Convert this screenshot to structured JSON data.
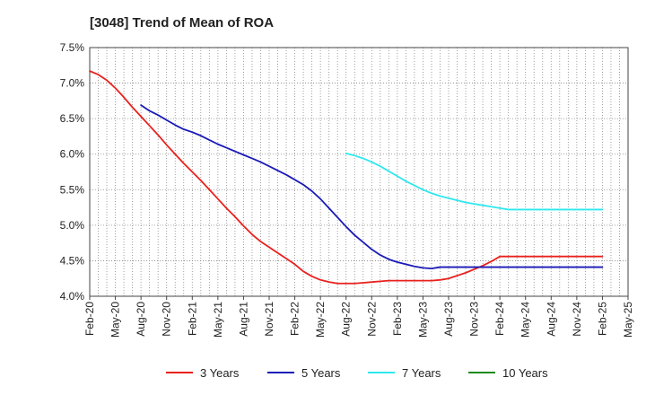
{
  "chart_data": {
    "type": "line",
    "title": "[3048]  Trend of Mean of ROA",
    "xlabel": "",
    "ylabel": "",
    "ylim": [
      4.0,
      7.5
    ],
    "yticks": [
      4.0,
      4.5,
      5.0,
      5.5,
      6.0,
      6.5,
      7.0,
      7.5
    ],
    "ytick_labels": [
      "4.0%",
      "4.5%",
      "5.0%",
      "5.5%",
      "6.0%",
      "6.5%",
      "7.0%",
      "7.5%"
    ],
    "x_index_range": [
      0,
      63
    ],
    "xtick_labels": [
      "Feb-20",
      "May-20",
      "Aug-20",
      "Nov-20",
      "Feb-21",
      "May-21",
      "Aug-21",
      "Nov-21",
      "Feb-22",
      "May-22",
      "Aug-22",
      "Nov-22",
      "Feb-23",
      "May-23",
      "Aug-23",
      "Nov-23",
      "Feb-24",
      "May-24",
      "Aug-24",
      "Nov-24",
      "Feb-25",
      "May-25"
    ],
    "grid": true,
    "legend_position": "bottom",
    "series": [
      {
        "name": "3 Years",
        "color": "#e8211d",
        "x": [
          0,
          1,
          2,
          3,
          4,
          5,
          6,
          7,
          8,
          9,
          10,
          11,
          12,
          13,
          14,
          15,
          16,
          17,
          18,
          19,
          20,
          21,
          22,
          23,
          24,
          25,
          26,
          27,
          28,
          29,
          30,
          31,
          32,
          33,
          34,
          35,
          36,
          37,
          38,
          39,
          40,
          41,
          42,
          43,
          44,
          45,
          46,
          47,
          48,
          49,
          50,
          51,
          52,
          53,
          54,
          55,
          56,
          57,
          58,
          59,
          60
        ],
        "values": [
          7.17,
          7.12,
          7.04,
          6.93,
          6.8,
          6.66,
          6.53,
          6.4,
          6.27,
          6.13,
          6.0,
          5.87,
          5.75,
          5.63,
          5.5,
          5.37,
          5.24,
          5.12,
          4.99,
          4.87,
          4.77,
          4.69,
          4.61,
          4.53,
          4.45,
          4.35,
          4.28,
          4.23,
          4.2,
          4.18,
          4.18,
          4.18,
          4.19,
          4.2,
          4.21,
          4.22,
          4.22,
          4.22,
          4.22,
          4.22,
          4.22,
          4.23,
          4.25,
          4.29,
          4.33,
          4.38,
          4.43,
          4.49,
          4.56,
          4.56,
          4.56,
          4.56,
          4.56,
          4.56,
          4.56,
          4.56,
          4.56,
          4.56,
          4.56,
          4.56,
          4.56
        ]
      },
      {
        "name": "5 Years",
        "color": "#1a1ab8",
        "x": [
          6,
          7,
          8,
          9,
          10,
          11,
          12,
          13,
          14,
          15,
          16,
          17,
          18,
          19,
          20,
          21,
          22,
          23,
          24,
          25,
          26,
          27,
          28,
          29,
          30,
          31,
          32,
          33,
          34,
          35,
          36,
          37,
          38,
          39,
          40,
          41,
          42,
          43,
          44,
          45,
          46,
          47,
          48,
          49,
          50,
          51,
          52,
          53,
          54,
          55,
          56,
          57,
          58,
          59,
          60
        ],
        "values": [
          6.69,
          6.61,
          6.55,
          6.48,
          6.41,
          6.35,
          6.31,
          6.26,
          6.2,
          6.14,
          6.09,
          6.04,
          5.99,
          5.94,
          5.89,
          5.83,
          5.77,
          5.71,
          5.64,
          5.57,
          5.48,
          5.37,
          5.24,
          5.11,
          4.98,
          4.86,
          4.76,
          4.66,
          4.58,
          4.52,
          4.48,
          4.45,
          4.42,
          4.4,
          4.39,
          4.41,
          4.41,
          4.41,
          4.41,
          4.41,
          4.41,
          4.41,
          4.41,
          4.41,
          4.41,
          4.41,
          4.41,
          4.41,
          4.41,
          4.41,
          4.41,
          4.41,
          4.41,
          4.41,
          4.41
        ]
      },
      {
        "name": "7 Years",
        "color": "#2ee8ee",
        "x": [
          30,
          31,
          32,
          33,
          34,
          35,
          36,
          37,
          38,
          39,
          40,
          41,
          42,
          43,
          44,
          45,
          46,
          47,
          48,
          49,
          50,
          51,
          52,
          53,
          54,
          55,
          56,
          57,
          58,
          59,
          60
        ],
        "values": [
          6.01,
          5.98,
          5.94,
          5.89,
          5.83,
          5.76,
          5.69,
          5.62,
          5.56,
          5.5,
          5.45,
          5.41,
          5.38,
          5.35,
          5.32,
          5.3,
          5.28,
          5.26,
          5.24,
          5.22,
          5.22,
          5.22,
          5.22,
          5.22,
          5.22,
          5.22,
          5.22,
          5.22,
          5.22,
          5.22,
          5.22
        ]
      },
      {
        "name": "10 Years",
        "color": "#1d8a1d",
        "x": [],
        "values": []
      }
    ]
  }
}
